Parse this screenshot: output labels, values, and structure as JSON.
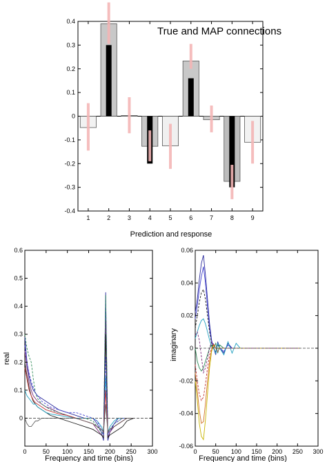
{
  "chart_data": [
    {
      "type": "bar",
      "title": "True and MAP connections",
      "xlabel": "Prediction and response",
      "ylabel": "",
      "categories": [
        "1",
        "2",
        "3",
        "4",
        "5",
        "6",
        "7",
        "8",
        "9"
      ],
      "ylim": [
        -0.4,
        0.4
      ],
      "yticks": [
        -0.4,
        -0.3,
        -0.2,
        -0.1,
        0,
        0.1,
        0.2,
        0.3,
        0.4
      ],
      "ytick_labels": [
        "-0.4",
        "-0.3",
        "-0.2",
        "-0.1",
        "0",
        "0.1",
        "0.2",
        "0.3",
        "0.4"
      ],
      "series": [
        {
          "values": [
            -0.048,
            0.39,
            0.003,
            -0.127,
            -0.125,
            0.233,
            -0.015,
            -0.275,
            -0.11
          ]
        },
        {
          "values": [
            0,
            0.3,
            0,
            -0.2,
            0,
            0.16,
            0,
            -0.3,
            0
          ]
        },
        {
          "values": [
            0,
            0.39,
            0,
            -0.13,
            -0.08,
            0.25,
            0,
            -0.27,
            -0.11
          ],
          "interval_low": [
            -0.145,
            0.305,
            -0.072,
            -0.19,
            -0.222,
            0.2,
            -0.068,
            -0.35,
            -0.2
          ],
          "interval_high": [
            0.055,
            0.48,
            0.08,
            -0.06,
            -0.032,
            0.305,
            0.045,
            -0.205,
            -0.02
          ]
        }
      ],
      "colors": {
        "bar_fill": [
          "#f2f2f2",
          "#c8c8c8",
          "#e6e6e6",
          "#c8c8c8",
          "#f0f0f0",
          "#c8c8c8",
          "#cccccc",
          "#bdbdbd",
          "#f2f2f2"
        ],
        "true": "#000000",
        "interval": "#f4b6b6"
      }
    },
    {
      "type": "line",
      "title": "",
      "xlabel": "Frequency and time (bins)",
      "ylabel": "real",
      "xlim": [
        0,
        300
      ],
      "ylim": [
        -0.1,
        0.6
      ],
      "xticks": [
        0,
        50,
        100,
        150,
        200,
        250,
        300
      ],
      "xtick_labels": [
        "0",
        "50",
        "100",
        "150",
        "200",
        "250",
        "300"
      ],
      "yticks": [
        0,
        0.1,
        0.2,
        0.3,
        0.4,
        0.5,
        0.6
      ],
      "ytick_labels": [
        "0",
        "0.1",
        "0.2",
        "0.3",
        "0.4",
        "0.5",
        "0.6"
      ],
      "x": [
        0,
        5,
        10,
        15,
        20,
        25,
        30,
        40,
        50,
        60,
        80,
        100,
        120,
        140,
        160,
        170,
        180,
        185,
        190,
        195,
        200,
        210,
        220,
        230,
        240,
        256
      ],
      "series": [
        {
          "color": "#2a2a9c",
          "values": [
            0.29,
            0.2,
            0.15,
            0.12,
            0.1,
            0.09,
            0.08,
            0.07,
            0.06,
            0.05,
            0.03,
            0.02,
            0.01,
            0.0,
            0.0,
            -0.02,
            -0.05,
            -0.08,
            0.45,
            -0.08,
            -0.05,
            -0.02,
            0.0,
            0.0,
            0.0,
            0.0
          ]
        },
        {
          "color": "#7a2a7a",
          "values": [
            0.24,
            0.18,
            0.13,
            0.1,
            0.08,
            0.07,
            0.06,
            0.05,
            0.04,
            0.035,
            0.02,
            0.01,
            0.0,
            -0.01,
            -0.02,
            -0.04,
            -0.06,
            -0.07,
            0.35,
            -0.07,
            -0.05,
            -0.03,
            -0.02,
            -0.01,
            0.0,
            0.0
          ]
        },
        {
          "color": "#2e8b57",
          "values": [
            0.3,
            0.25,
            0.22,
            0.2,
            0.14,
            0.09,
            0.07,
            0.05,
            0.04,
            0.03,
            0.02,
            0.01,
            0.0,
            0.0,
            -0.01,
            -0.03,
            -0.05,
            -0.06,
            0.44,
            -0.06,
            -0.04,
            -0.02,
            -0.01,
            0.0,
            0.0,
            0.0
          ]
        },
        {
          "color": "#1a1a1a",
          "values": [
            0.2,
            0.15,
            0.11,
            0.08,
            0.06,
            0.05,
            0.04,
            0.03,
            0.02,
            0.01,
            0.0,
            -0.01,
            -0.02,
            -0.03,
            -0.04,
            -0.05,
            -0.06,
            -0.07,
            0.3,
            -0.07,
            -0.06,
            -0.05,
            -0.04,
            -0.03,
            -0.01,
            0.0
          ]
        },
        {
          "color": "#20a0c0",
          "values": [
            0.1,
            0.08,
            0.07,
            0.06,
            0.05,
            0.05,
            0.04,
            0.03,
            0.02,
            0.015,
            0.01,
            0.005,
            0.0,
            0.0,
            0.0,
            -0.01,
            -0.03,
            -0.05,
            0.15,
            -0.05,
            -0.03,
            -0.01,
            0.0,
            0.0,
            0.0,
            0.0
          ]
        },
        {
          "color": "#4040d0",
          "values": [
            0.26,
            0.2,
            0.16,
            0.13,
            0.11,
            0.09,
            0.08,
            0.06,
            0.05,
            0.04,
            0.03,
            0.02,
            0.02,
            0.01,
            0.0,
            -0.01,
            -0.04,
            -0.06,
            0.22,
            -0.06,
            -0.04,
            -0.02,
            -0.01,
            0.0,
            0.0,
            0.0
          ]
        },
        {
          "color": "#c03030",
          "values": [
            0.18,
            0.14,
            0.1,
            0.08,
            0.065,
            0.055,
            0.05,
            0.04,
            0.03,
            0.025,
            0.015,
            0.01,
            0.0,
            -0.01,
            -0.02,
            -0.03,
            -0.04,
            -0.05,
            0.1,
            -0.05,
            -0.04,
            -0.03,
            -0.02,
            -0.01,
            0.0,
            0.0
          ]
        },
        {
          "color": "#606060",
          "values": [
            0.0,
            -0.02,
            -0.03,
            -0.03,
            -0.02,
            -0.01,
            -0.01,
            0.0,
            0.0,
            0.0,
            0.0,
            0.0,
            0.0,
            -0.01,
            -0.02,
            -0.03,
            -0.04,
            -0.05,
            0.05,
            -0.05,
            -0.04,
            -0.03,
            -0.02,
            -0.01,
            0.0,
            0.0
          ]
        }
      ]
    },
    {
      "type": "line",
      "title": "",
      "xlabel": "Frequency and time (bins)",
      "ylabel": "imaginary",
      "xlim": [
        0,
        300
      ],
      "ylim": [
        -0.06,
        0.06
      ],
      "xticks": [
        0,
        50,
        100,
        150,
        200,
        250,
        300
      ],
      "xtick_labels": [
        "0",
        "50",
        "100",
        "150",
        "200",
        "250",
        "300"
      ],
      "yticks": [
        -0.06,
        -0.04,
        -0.02,
        0,
        0.02,
        0.04,
        0.06
      ],
      "ytick_labels": [
        "-0.06",
        "-0.04",
        "-0.02",
        "0",
        "0.02",
        "0.04",
        "0.06"
      ],
      "x": [
        0,
        5,
        10,
        15,
        20,
        25,
        30,
        35,
        40,
        45,
        50,
        55,
        60,
        70,
        80,
        90,
        100,
        110,
        120,
        150,
        200,
        256
      ],
      "series": [
        {
          "color": "#2a2a9c",
          "values": [
            0.022,
            0.03,
            0.042,
            0.052,
            0.057,
            0.045,
            0.03,
            0.015,
            0.005,
            0.0,
            -0.004,
            0.004,
            0.0,
            -0.003,
            0.003,
            0.0,
            0.0,
            0.0,
            0.0,
            0.0,
            0.0,
            0.0
          ]
        },
        {
          "color": "#4040d0",
          "values": [
            0.018,
            0.026,
            0.036,
            0.044,
            0.05,
            0.04,
            0.025,
            0.012,
            0.004,
            0.0,
            -0.003,
            0.003,
            0.0,
            -0.002,
            0.002,
            0.0,
            0.0,
            0.0,
            0.0,
            0.0,
            0.0,
            0.0
          ]
        },
        {
          "color": "#1a1a1a",
          "values": [
            0.012,
            0.02,
            0.028,
            0.034,
            0.036,
            0.03,
            0.02,
            0.01,
            0.003,
            0.0,
            -0.002,
            0.002,
            0.0,
            0.0,
            0.0,
            0.0,
            0.0,
            0.0,
            0.0,
            0.0,
            0.0,
            0.0
          ]
        },
        {
          "color": "#20a0c0",
          "values": [
            0.006,
            0.01,
            0.014,
            0.017,
            0.018,
            0.015,
            0.01,
            0.005,
            0.001,
            0.0,
            -0.003,
            0.003,
            0.0,
            -0.004,
            0.004,
            -0.003,
            0.003,
            0.0,
            0.0,
            0.0,
            0.0,
            0.0
          ]
        },
        {
          "color": "#2e8b57",
          "values": [
            0.0,
            -0.008,
            -0.012,
            -0.014,
            -0.012,
            -0.008,
            -0.004,
            0.0,
            0.002,
            0.0,
            0.003,
            -0.003,
            0.002,
            0.0,
            0.0,
            0.0,
            0.0,
            0.0,
            0.0,
            0.0,
            0.0,
            0.0
          ]
        },
        {
          "color": "#c03030",
          "values": [
            -0.01,
            -0.02,
            -0.028,
            -0.032,
            -0.03,
            -0.022,
            -0.012,
            -0.004,
            0.0,
            0.003,
            0.0,
            -0.002,
            0.0,
            0.0,
            0.0,
            0.0,
            0.0,
            0.0,
            0.0,
            0.0,
            0.0,
            0.0
          ]
        },
        {
          "color": "#d07020",
          "values": [
            -0.015,
            -0.026,
            -0.038,
            -0.046,
            -0.045,
            -0.034,
            -0.02,
            -0.008,
            -0.001,
            0.002,
            0.0,
            0.0,
            0.0,
            0.0,
            0.0,
            0.0,
            0.0,
            0.0,
            0.0,
            0.0,
            0.0,
            0.0
          ]
        },
        {
          "color": "#c8b400",
          "values": [
            -0.02,
            -0.032,
            -0.046,
            -0.054,
            -0.056,
            -0.044,
            -0.028,
            -0.012,
            -0.002,
            0.002,
            0.0,
            0.0,
            0.0,
            0.0,
            0.0,
            0.0,
            0.0,
            0.0,
            0.0,
            0.0,
            0.0,
            0.0
          ]
        },
        {
          "color": "#7a2a7a",
          "values": [
            0.008,
            0.01,
            0.005,
            -0.005,
            -0.015,
            -0.012,
            -0.006,
            0.0,
            0.004,
            0.002,
            0.0,
            0.0,
            0.0,
            0.0,
            0.0,
            0.0,
            0.0,
            0.0,
            0.0,
            0.0,
            0.0,
            0.0
          ]
        }
      ]
    }
  ]
}
